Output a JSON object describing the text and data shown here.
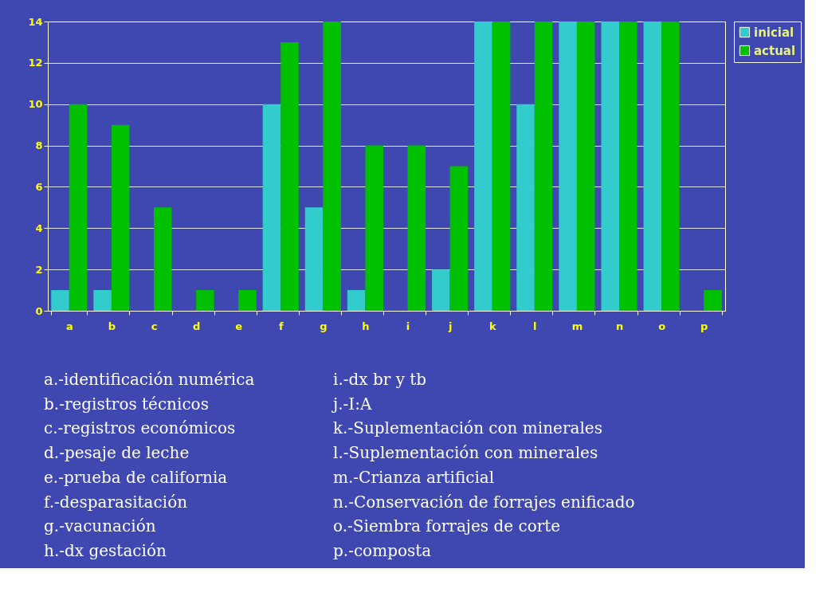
{
  "chart_data": {
    "type": "bar",
    "categories": [
      "a",
      "b",
      "c",
      "d",
      "e",
      "f",
      "g",
      "h",
      "i",
      "j",
      "k",
      "l",
      "m",
      "n",
      "o",
      "p"
    ],
    "series": [
      {
        "name": "inicial",
        "color": "#33cccc",
        "values": [
          1,
          1,
          0,
          0,
          0,
          10,
          5,
          1,
          0,
          2,
          14,
          10,
          14,
          14,
          14,
          0
        ]
      },
      {
        "name": "actual",
        "color": "#00c000",
        "values": [
          10,
          9,
          5,
          1,
          1,
          13,
          14,
          8,
          8,
          7,
          14,
          14,
          14,
          14,
          14,
          1
        ]
      }
    ],
    "ylim": [
      0,
      14
    ],
    "yticks": [
      0,
      2,
      4,
      6,
      8,
      10,
      12,
      14
    ],
    "grid": "y",
    "legend": "top right",
    "annotations": [
      "a.-identificación numérica",
      "b.-registros técnicos",
      "c.-registros económicos",
      "d.-pesaje de leche",
      "e.-prueba de california",
      "f.-desparasitación",
      "g.-vacunación",
      "h.-dx gestación",
      "i.-dx br y tb",
      "j.-I:A",
      "k.-Suplementación con minerales",
      "l.-Suplementación con minerales",
      "m.-Crianza artificial",
      "n.-Conservación de forrajes enificado",
      "o.-Siembra forrajes de corte",
      "p.-composta"
    ]
  }
}
